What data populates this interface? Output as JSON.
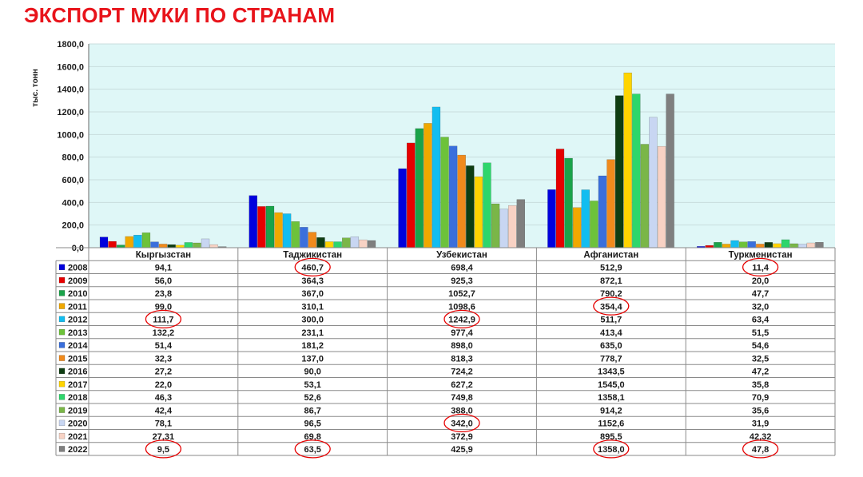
{
  "title": "ЭКСПОРТ МУКИ ПО СТРАНАМ",
  "chart_data": {
    "type": "bar",
    "title": "ЭКСПОРТ МУКИ ПО СТРАНАМ",
    "ylabel": "тыс. тонн",
    "xlabel": "",
    "ylim": [
      0,
      1800
    ],
    "yticks": [
      "0,0",
      "200,0",
      "400,0",
      "600,0",
      "800,0",
      "1000,0",
      "1200,0",
      "1400,0",
      "1600,0",
      "1800,0"
    ],
    "grid": true,
    "legend": "data-table",
    "categories": [
      "Кыргызстан",
      "Таджикистан",
      "Узбекистан",
      "Афганистан",
      "Туркменистан"
    ],
    "series": [
      {
        "name": "2008",
        "color": "#0000dd",
        "values": [
          94.1,
          460.7,
          698.4,
          512.9,
          11.4
        ],
        "labels": [
          "94,1",
          "460,7",
          "698,4",
          "512,9",
          "11,4"
        ]
      },
      {
        "name": "2009",
        "color": "#e60000",
        "values": [
          56.0,
          364.3,
          925.3,
          872.1,
          20.0
        ],
        "labels": [
          "56,0",
          "364,3",
          "925,3",
          "872,1",
          "20,0"
        ]
      },
      {
        "name": "2010",
        "color": "#1aa34a",
        "values": [
          23.8,
          367.0,
          1052.7,
          790.2,
          47.7
        ],
        "labels": [
          "23,8",
          "367,0",
          "1052,7",
          "790,2",
          "47,7"
        ]
      },
      {
        "name": "2011",
        "color": "#f0a800",
        "values": [
          99.0,
          310.1,
          1098.6,
          354.4,
          32.0
        ],
        "labels": [
          "99,0",
          "310,1",
          "1098,6",
          "354,4",
          "32,0"
        ]
      },
      {
        "name": "2012",
        "color": "#12bdf0",
        "values": [
          111.7,
          300.0,
          1242.9,
          511.7,
          63.4
        ],
        "labels": [
          "111,7",
          "300,0",
          "1242,9",
          "511,7",
          "63,4"
        ]
      },
      {
        "name": "2013",
        "color": "#6dc23a",
        "values": [
          132.2,
          231.1,
          977.4,
          413.4,
          51.5
        ],
        "labels": [
          "132,2",
          "231,1",
          "977,4",
          "413,4",
          "51,5"
        ]
      },
      {
        "name": "2014",
        "color": "#3a6fdc",
        "values": [
          51.4,
          181.2,
          898.0,
          635.0,
          54.6
        ],
        "labels": [
          "51,4",
          "181,2",
          "898,0",
          "635,0",
          "54,6"
        ]
      },
      {
        "name": "2015",
        "color": "#f08a1c",
        "values": [
          32.3,
          137.0,
          818.3,
          778.7,
          32.5
        ],
        "labels": [
          "32,3",
          "137,0",
          "818,3",
          "778,7",
          "32,5"
        ]
      },
      {
        "name": "2016",
        "color": "#0f3d12",
        "values": [
          27.2,
          90.0,
          724.2,
          1343.5,
          47.2
        ],
        "labels": [
          "27,2",
          "90,0",
          "724,2",
          "1343,5",
          "47,2"
        ]
      },
      {
        "name": "2017",
        "color": "#ffd400",
        "values": [
          22.0,
          53.1,
          627.2,
          1545.0,
          35.8
        ],
        "labels": [
          "22,0",
          "53,1",
          "627,2",
          "1545,0",
          "35,8"
        ]
      },
      {
        "name": "2018",
        "color": "#2ed66b",
        "values": [
          46.3,
          52.6,
          749.8,
          1358.1,
          70.9
        ],
        "labels": [
          "46,3",
          "52,6",
          "749,8",
          "1358,1",
          "70,9"
        ]
      },
      {
        "name": "2019",
        "color": "#7ab648",
        "values": [
          42.4,
          86.7,
          388.0,
          914.2,
          35.6
        ],
        "labels": [
          "42,4",
          "86,7",
          "388,0",
          "914,2",
          "35,6"
        ]
      },
      {
        "name": "2020",
        "color": "#c8d6f2",
        "values": [
          78.1,
          96.5,
          342.0,
          1152.6,
          31.9
        ],
        "labels": [
          "78,1",
          "96,5",
          "342,0",
          "1152,6",
          "31,9"
        ]
      },
      {
        "name": "2021",
        "color": "#f8d2c4",
        "values": [
          27.31,
          69.8,
          372.9,
          895.5,
          42.32
        ],
        "labels": [
          "27,31",
          "69,8",
          "372,9",
          "895,5",
          "42,32"
        ]
      },
      {
        "name": "2022",
        "color": "#7f7f7f",
        "values": [
          9.5,
          63.5,
          425.9,
          1358.0,
          47.8
        ],
        "labels": [
          "9,5",
          "63,5",
          "425,9",
          "1358,0",
          "47,8"
        ]
      }
    ],
    "annotations": [
      {
        "type": "circle",
        "series": "2008",
        "category": "Таджикистан",
        "color": "#e60000"
      },
      {
        "type": "circle",
        "series": "2008",
        "category": "Туркменистан",
        "color": "#e60000"
      },
      {
        "type": "circle",
        "series": "2011",
        "category": "Афганистан",
        "color": "#e60000"
      },
      {
        "type": "circle",
        "series": "2012",
        "category": "Кыргызстан",
        "color": "#e60000"
      },
      {
        "type": "circle",
        "series": "2012",
        "category": "Узбекистан",
        "color": "#e60000"
      },
      {
        "type": "circle",
        "series": "2020",
        "category": "Узбекистан",
        "color": "#e60000"
      },
      {
        "type": "circle",
        "series": "2022",
        "category": "Кыргызстан",
        "color": "#e60000"
      },
      {
        "type": "circle",
        "series": "2022",
        "category": "Таджикистан",
        "color": "#e60000"
      },
      {
        "type": "circle",
        "series": "2022",
        "category": "Афганистан",
        "color": "#e60000"
      },
      {
        "type": "circle",
        "series": "2022",
        "category": "Туркменистан",
        "color": "#e60000"
      }
    ],
    "colors": {
      "plot_background": "#dff7f7",
      "gridline": "#c8dcdc",
      "annotation": "#e60000",
      "title": "#e8141b"
    }
  }
}
